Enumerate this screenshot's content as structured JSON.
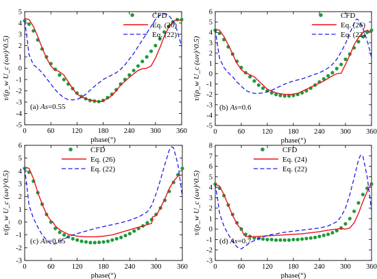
{
  "chart_data": [
    {
      "type": "line",
      "panel_label": "(a) As=0.55",
      "xlabel": "phase(°)",
      "ylabel": "τ/(ρ_w U_c (ων)^0.5)",
      "xlim": [
        0,
        360
      ],
      "ylim": [
        -5,
        5
      ],
      "xticks": [
        "0",
        "60",
        "120",
        "180",
        "240",
        "300",
        "360"
      ],
      "yticks": [
        "-5",
        "-4",
        "-3",
        "-2",
        "-1",
        "0",
        "1",
        "2",
        "3",
        "4",
        "5"
      ],
      "legend": [
        "CFD",
        "Eq. (26)",
        "Eq. (22)"
      ],
      "legend_position": "top-right",
      "series": [
        {
          "name": "CFD",
          "style": "dots",
          "x": [
            0,
            10,
            20,
            30,
            40,
            50,
            60,
            70,
            80,
            90,
            100,
            110,
            120,
            130,
            140,
            150,
            160,
            170,
            180,
            190,
            200,
            210,
            220,
            230,
            240,
            250,
            260,
            270,
            280,
            290,
            300,
            310,
            320,
            330,
            340,
            350,
            360
          ],
          "y": [
            4.2,
            3.9,
            3.3,
            2.5,
            1.7,
            1.0,
            0.4,
            -0.1,
            -0.6,
            -1.0,
            -1.4,
            -1.8,
            -2.2,
            -2.5,
            -2.7,
            -2.85,
            -2.9,
            -2.95,
            -2.85,
            -2.6,
            -2.3,
            -1.9,
            -1.4,
            -1.0,
            -0.6,
            -0.2,
            0.2,
            0.6,
            1.0,
            1.5,
            2.0,
            2.6,
            3.2,
            3.7,
            4.1,
            4.3,
            4.3
          ]
        },
        {
          "name": "Eq. (26)",
          "style": "solid",
          "x": [
            0,
            10,
            20,
            30,
            40,
            50,
            60,
            70,
            75,
            90,
            100,
            110,
            120,
            140,
            160,
            175,
            190,
            200,
            210,
            220,
            240,
            260,
            270,
            280,
            290,
            300,
            310,
            320,
            330,
            340,
            350,
            360
          ],
          "y": [
            4.4,
            4.3,
            3.7,
            2.8,
            1.8,
            0.9,
            0.2,
            -0.2,
            -0.2,
            -0.6,
            -1.2,
            -1.8,
            -2.3,
            -2.7,
            -2.9,
            -2.95,
            -2.7,
            -2.4,
            -2.0,
            -1.5,
            -0.8,
            -0.2,
            -0.05,
            0.0,
            0.2,
            0.9,
            1.8,
            2.8,
            3.6,
            4.1,
            4.3,
            4.2
          ]
        },
        {
          "name": "Eq. (22)",
          "style": "dashed",
          "x": [
            0,
            5,
            10,
            20,
            30,
            40,
            50,
            60,
            70,
            80,
            90,
            100,
            110,
            120,
            130,
            140,
            150,
            160,
            170,
            180,
            190,
            200,
            210,
            220,
            230,
            240,
            250,
            260,
            270,
            280,
            290,
            300,
            310,
            320,
            325,
            330,
            340,
            350,
            360
          ],
          "y": [
            4.2,
            2.8,
            1.2,
            0.3,
            0.0,
            -0.4,
            -0.9,
            -1.4,
            -1.9,
            -2.3,
            -2.6,
            -2.78,
            -2.8,
            -2.75,
            -2.6,
            -2.3,
            -1.95,
            -1.6,
            -1.3,
            -1.0,
            -0.8,
            -0.6,
            -0.4,
            -0.1,
            0.3,
            0.8,
            1.3,
            1.9,
            2.5,
            3.1,
            3.7,
            4.3,
            4.7,
            4.8,
            4.8,
            4.7,
            4.2,
            3.3,
            1.9
          ]
        }
      ]
    },
    {
      "type": "line",
      "panel_label": "(b) As=0.6",
      "xlabel": "phase(°)",
      "ylabel": "τ/(ρ_w U_c (ων)^0.5)",
      "xlim": [
        0,
        360
      ],
      "ylim": [
        -5,
        6
      ],
      "xticks": [
        "0",
        "60",
        "120",
        "180",
        "240",
        "300",
        "360"
      ],
      "yticks": [
        "-5",
        "-4",
        "-3",
        "-2",
        "-1",
        "0",
        "1",
        "2",
        "3",
        "4",
        "5",
        "6"
      ],
      "legend": [
        "CFD",
        "Eq. (26)",
        "Eq. (22)"
      ],
      "legend_position": "top-right",
      "series": [
        {
          "name": "CFD",
          "style": "dots",
          "x": [
            0,
            10,
            20,
            30,
            40,
            50,
            60,
            70,
            80,
            90,
            100,
            110,
            120,
            130,
            140,
            150,
            160,
            170,
            180,
            190,
            200,
            210,
            220,
            230,
            240,
            250,
            260,
            270,
            280,
            290,
            300,
            310,
            320,
            330,
            340,
            350,
            360
          ],
          "y": [
            4.2,
            3.9,
            3.3,
            2.6,
            1.9,
            1.2,
            0.6,
            0.1,
            -0.3,
            -0.7,
            -1.1,
            -1.4,
            -1.65,
            -1.85,
            -2.0,
            -2.1,
            -2.15,
            -2.15,
            -2.1,
            -2.0,
            -1.85,
            -1.65,
            -1.4,
            -1.1,
            -0.8,
            -0.5,
            -0.2,
            0.1,
            0.5,
            0.9,
            1.4,
            1.9,
            2.5,
            3.1,
            3.6,
            4.0,
            4.2
          ]
        },
        {
          "name": "Eq. (26)",
          "style": "solid",
          "x": [
            0,
            10,
            20,
            30,
            40,
            50,
            60,
            70,
            75,
            80,
            90,
            100,
            110,
            120,
            140,
            160,
            175,
            190,
            200,
            210,
            230,
            250,
            260,
            270,
            280,
            290,
            300,
            310,
            320,
            330,
            340,
            350,
            360
          ],
          "y": [
            4.3,
            4.2,
            3.6,
            2.8,
            1.9,
            1.0,
            0.4,
            0.05,
            0.0,
            -0.1,
            -0.3,
            -0.7,
            -1.1,
            -1.5,
            -1.85,
            -2.0,
            -2.0,
            -1.9,
            -1.7,
            -1.5,
            -1.1,
            -0.7,
            -0.45,
            -0.2,
            0.0,
            0.05,
            0.9,
            1.8,
            2.8,
            3.5,
            4.0,
            4.2,
            4.0
          ]
        },
        {
          "name": "Eq. (22)",
          "style": "dashed",
          "x": [
            0,
            5,
            10,
            20,
            30,
            40,
            50,
            60,
            70,
            80,
            90,
            100,
            110,
            120,
            130,
            140,
            150,
            160,
            170,
            180,
            190,
            200,
            210,
            220,
            230,
            240,
            250,
            260,
            270,
            280,
            290,
            300,
            310,
            320,
            325,
            330,
            340,
            350,
            360
          ],
          "y": [
            4.3,
            2.8,
            1.5,
            0.6,
            0.1,
            -0.3,
            -0.8,
            -1.2,
            -1.6,
            -1.8,
            -1.9,
            -1.9,
            -1.85,
            -1.75,
            -1.6,
            -1.4,
            -1.2,
            -1.0,
            -0.85,
            -0.7,
            -0.6,
            -0.5,
            -0.35,
            -0.2,
            -0.05,
            0.1,
            0.3,
            0.55,
            0.9,
            1.4,
            2.1,
            2.9,
            3.9,
            4.9,
            5.3,
            5.2,
            4.4,
            3.2,
            1.6
          ]
        }
      ]
    },
    {
      "type": "line",
      "panel_label": "(c) As=0.65",
      "xlabel": "phase(°)",
      "ylabel": "τ/(ρ_w U_c (ων)^0.5)",
      "xlim": [
        0,
        360
      ],
      "ylim": [
        -3,
        6
      ],
      "xticks": [
        "0",
        "60",
        "120",
        "180",
        "240",
        "300",
        "360"
      ],
      "yticks": [
        "-3",
        "-2",
        "-1",
        "0",
        "1",
        "2",
        "3",
        "4",
        "5",
        "6"
      ],
      "legend": [
        "CFD",
        "Eq. (26)",
        "Eq. (22)"
      ],
      "legend_position": "top-center",
      "series": [
        {
          "name": "CFD",
          "style": "dots",
          "x": [
            0,
            10,
            20,
            30,
            40,
            50,
            60,
            70,
            80,
            90,
            100,
            110,
            120,
            130,
            140,
            150,
            160,
            170,
            180,
            190,
            200,
            210,
            220,
            230,
            240,
            250,
            260,
            270,
            280,
            290,
            300,
            310,
            320,
            330,
            340,
            350,
            360
          ],
          "y": [
            4.2,
            3.9,
            3.2,
            2.3,
            1.4,
            0.6,
            0.0,
            -0.5,
            -0.8,
            -1.0,
            -1.15,
            -1.3,
            -1.4,
            -1.5,
            -1.55,
            -1.6,
            -1.6,
            -1.58,
            -1.55,
            -1.5,
            -1.4,
            -1.3,
            -1.2,
            -1.05,
            -0.9,
            -0.7,
            -0.5,
            -0.3,
            -0.05,
            0.2,
            0.6,
            1.1,
            1.7,
            2.4,
            3.1,
            3.7,
            4.2
          ]
        },
        {
          "name": "Eq. (26)",
          "style": "solid",
          "x": [
            0,
            10,
            20,
            30,
            40,
            50,
            60,
            65,
            70,
            80,
            90,
            100,
            120,
            140,
            160,
            180,
            200,
            220,
            240,
            260,
            280,
            290,
            292,
            300,
            310,
            320,
            330,
            340,
            350,
            360
          ],
          "y": [
            4.3,
            4.2,
            3.4,
            2.3,
            1.4,
            0.6,
            0.1,
            0.0,
            -0.3,
            -0.6,
            -0.8,
            -0.95,
            -1.1,
            -1.15,
            -1.15,
            -1.1,
            -1.0,
            -0.8,
            -0.6,
            -0.4,
            -0.2,
            -0.1,
            0.4,
            0.5,
            1.1,
            1.8,
            2.6,
            3.2,
            3.6,
            3.7
          ]
        },
        {
          "name": "Eq. (22)",
          "style": "dashed",
          "x": [
            0,
            5,
            10,
            20,
            30,
            40,
            50,
            60,
            70,
            80,
            90,
            100,
            110,
            120,
            140,
            160,
            180,
            200,
            220,
            240,
            260,
            280,
            290,
            300,
            310,
            320,
            330,
            335,
            340,
            350,
            360
          ],
          "y": [
            4.2,
            2.8,
            1.3,
            0.3,
            -0.4,
            -1.0,
            -1.4,
            -1.7,
            -1.7,
            -1.5,
            -1.3,
            -1.15,
            -1.0,
            -0.9,
            -0.7,
            -0.5,
            -0.35,
            -0.2,
            -0.05,
            0.15,
            0.4,
            0.8,
            1.3,
            2.2,
            3.3,
            4.5,
            5.6,
            5.9,
            5.8,
            4.5,
            2.0
          ]
        }
      ]
    },
    {
      "type": "line",
      "panel_label": "(d) As=0.7",
      "xlabel": "phase(°)",
      "ylabel": "τ/(ρ_w U_c (ων)^0.5)",
      "xlim": [
        0,
        360
      ],
      "ylim": [
        -3,
        8
      ],
      "xticks": [
        "0",
        "60",
        "120",
        "180",
        "240",
        "300",
        "360"
      ],
      "yticks": [
        "-3",
        "-2",
        "-1",
        "0",
        "1",
        "2",
        "3",
        "4",
        "5",
        "6",
        "7",
        "8"
      ],
      "legend": [
        "CFD",
        "Eq. (24)",
        "Eq. (22)"
      ],
      "legend_position": "top-center",
      "series": [
        {
          "name": "CFD",
          "style": "dots",
          "x": [
            0,
            10,
            20,
            30,
            40,
            50,
            60,
            70,
            80,
            90,
            100,
            110,
            120,
            130,
            140,
            150,
            160,
            170,
            180,
            190,
            200,
            210,
            220,
            230,
            240,
            250,
            260,
            270,
            280,
            290,
            300,
            310,
            320,
            330,
            340,
            350,
            360
          ],
          "y": [
            4.3,
            3.9,
            3.2,
            2.3,
            1.4,
            0.6,
            0.0,
            -0.5,
            -0.7,
            -0.85,
            -0.9,
            -0.95,
            -1.0,
            -1.0,
            -1.05,
            -1.05,
            -1.05,
            -1.05,
            -1.0,
            -1.0,
            -0.95,
            -0.9,
            -0.85,
            -0.8,
            -0.7,
            -0.6,
            -0.5,
            -0.35,
            -0.15,
            0.1,
            0.5,
            1.0,
            1.7,
            2.5,
            3.3,
            3.9,
            4.3
          ]
        },
        {
          "name": "Eq. (24)",
          "style": "solid",
          "x": [
            0,
            10,
            20,
            30,
            40,
            50,
            55,
            60,
            65,
            70,
            80,
            100,
            120,
            140,
            160,
            180,
            200,
            220,
            240,
            260,
            280,
            290,
            300,
            310,
            320,
            330,
            340,
            350,
            360
          ],
          "y": [
            4.3,
            4.1,
            3.3,
            2.3,
            1.3,
            0.5,
            0.2,
            0.1,
            -0.5,
            -0.7,
            -0.75,
            -0.7,
            -0.65,
            -0.6,
            -0.55,
            -0.5,
            -0.45,
            -0.35,
            -0.25,
            -0.1,
            0.0,
            0.05,
            0.0,
            0.1,
            0.6,
            1.5,
            2.6,
            3.6,
            4.4
          ]
        },
        {
          "name": "Eq. (22)",
          "style": "dashed",
          "x": [
            0,
            5,
            10,
            20,
            30,
            40,
            50,
            60,
            70,
            80,
            90,
            100,
            110,
            120,
            140,
            160,
            180,
            200,
            220,
            240,
            260,
            280,
            290,
            300,
            310,
            320,
            330,
            335,
            340,
            350,
            360
          ],
          "y": [
            4.3,
            3.0,
            1.5,
            0.3,
            -0.5,
            -1.2,
            -1.7,
            -1.9,
            -1.6,
            -1.3,
            -1.1,
            -0.9,
            -0.75,
            -0.6,
            -0.45,
            -0.3,
            -0.2,
            -0.1,
            0.0,
            0.1,
            0.3,
            0.7,
            1.2,
            2.0,
            3.3,
            4.9,
            6.6,
            7.1,
            7.0,
            5.0,
            1.8
          ]
        }
      ]
    }
  ]
}
